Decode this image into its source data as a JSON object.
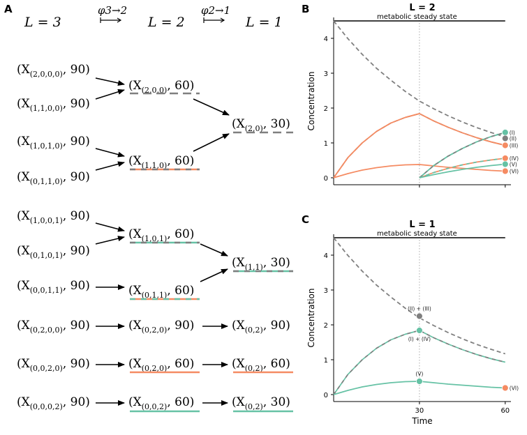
{
  "panel_labels": {
    "a": "A",
    "b": "B",
    "c": "C"
  },
  "header": {
    "l3": "L = 3",
    "map32": "φ3→2",
    "l2": "L = 2",
    "map21": "φ2→1",
    "l1": "L = 1"
  },
  "nodes": {
    "l3": [
      {
        "sub": "(2,0,0,0)",
        "val": "90"
      },
      {
        "sub": "(1,1,0,0)",
        "val": "90"
      },
      {
        "sub": "(1,0,1,0)",
        "val": "90"
      },
      {
        "sub": "(0,1,1,0)",
        "val": "90"
      },
      {
        "sub": "(1,0,0,1)",
        "val": "90"
      },
      {
        "sub": "(0,1,0,1)",
        "val": "90"
      },
      {
        "sub": "(0,0,1,1)",
        "val": "90"
      },
      {
        "sub": "(0,2,0,0)",
        "val": "90"
      },
      {
        "sub": "(0,0,2,0)",
        "val": "90"
      },
      {
        "sub": "(0,0,0,2)",
        "val": "90"
      }
    ],
    "l2": [
      {
        "sub": "(2,0,0)",
        "val": "60"
      },
      {
        "sub": "(1,1,0)",
        "val": "60"
      },
      {
        "sub": "(1,0,1)",
        "val": "60"
      },
      {
        "sub": "(0,1,1)",
        "val": "60"
      },
      {
        "sub": "(0,2,0)",
        "val": "90"
      },
      {
        "sub": "(0,2,0)",
        "val": "60"
      },
      {
        "sub": "(0,0,2)",
        "val": "60"
      }
    ],
    "l1": [
      {
        "sub": "(2,0)",
        "val": "30"
      },
      {
        "sub": "(1,1)",
        "val": "30"
      },
      {
        "sub": "(0,2)",
        "val": "90"
      },
      {
        "sub": "(0,2)",
        "val": "60"
      },
      {
        "sub": "(0,2)",
        "val": "30"
      }
    ]
  },
  "colors": {
    "gray": "#7f7f7f",
    "orange": "#f58b62",
    "teal": "#66c2a5",
    "black": "#000000"
  },
  "chart_data": [
    {
      "type": "line",
      "title": "L = 2",
      "xlabel": "",
      "ylabel": "Concentration",
      "xlim": [
        0,
        62
      ],
      "ylim": [
        -0.2,
        4.6
      ],
      "x_ticks": [],
      "y_ticks": [
        0,
        1,
        2,
        3,
        4
      ],
      "vline": 30,
      "steady_state": {
        "y": 4.5,
        "label": "metabolic steady state"
      },
      "series": [
        {
          "x": [
            0,
            5,
            10,
            15,
            20,
            25,
            30,
            35,
            40,
            45,
            50,
            55,
            60
          ],
          "values": [
            4.5,
            3.99,
            3.54,
            3.14,
            2.8,
            2.48,
            2.2,
            1.98,
            1.78,
            1.6,
            1.44,
            1.3,
            1.17
          ],
          "style": "dashed-gray"
        },
        {
          "x": [
            0,
            5,
            10,
            15,
            20,
            25,
            30,
            35,
            40,
            45,
            50,
            55,
            60
          ],
          "values": [
            0,
            0.58,
            1.0,
            1.33,
            1.57,
            1.73,
            1.84,
            1.63,
            1.45,
            1.29,
            1.15,
            1.03,
            0.93
          ],
          "style": "orange-gray"
        },
        {
          "x": [
            0,
            5,
            10,
            15,
            20,
            25,
            30,
            35,
            40,
            45,
            50,
            55,
            60
          ],
          "values": [
            0,
            0.58,
            1.0,
            1.33,
            1.57,
            1.73,
            1.84,
            1.63,
            1.45,
            1.29,
            1.15,
            1.03,
            0.93
          ],
          "style": "orange"
        },
        {
          "x": [
            0,
            5,
            10,
            15,
            20,
            25,
            30,
            35,
            40,
            45,
            50,
            55,
            60
          ],
          "values": [
            0,
            0.12,
            0.22,
            0.29,
            0.34,
            0.37,
            0.38,
            0.34,
            0.3,
            0.27,
            0.24,
            0.21,
            0.19
          ],
          "style": "orange"
        },
        {
          "x": [
            30,
            35,
            40,
            45,
            50,
            55,
            60
          ],
          "values": [
            0,
            0.35,
            0.62,
            0.84,
            1.03,
            1.18,
            1.3
          ],
          "style": "teal"
        },
        {
          "x": [
            30,
            35,
            40,
            45,
            50,
            55,
            60
          ],
          "values": [
            0,
            0.35,
            0.62,
            0.84,
            1.03,
            1.18,
            1.3
          ],
          "style": "teal-gray"
        },
        {
          "x": [
            30,
            35,
            40,
            45,
            50,
            55,
            60
          ],
          "values": [
            0,
            0.15,
            0.27,
            0.37,
            0.45,
            0.51,
            0.56
          ],
          "style": "orange-teal"
        },
        {
          "x": [
            30,
            35,
            40,
            45,
            50,
            55,
            60
          ],
          "values": [
            0,
            0.09,
            0.17,
            0.24,
            0.3,
            0.35,
            0.39
          ],
          "style": "teal"
        }
      ],
      "markers": [
        {
          "x": 60,
          "y": 1.3,
          "color": "teal",
          "label": "(I)"
        },
        {
          "x": 60,
          "y": 1.13,
          "color": "gray",
          "label": "(II)"
        },
        {
          "x": 60,
          "y": 0.93,
          "color": "orange",
          "label": "(III)"
        },
        {
          "x": 60,
          "y": 0.56,
          "color": "orange",
          "label": "(IV)"
        },
        {
          "x": 60,
          "y": 0.39,
          "color": "teal",
          "label": "(V)"
        },
        {
          "x": 60,
          "y": 0.19,
          "color": "orange",
          "label": "(VI)"
        }
      ]
    },
    {
      "type": "line",
      "title": "L = 1",
      "xlabel": "Time",
      "ylabel": "Concentration",
      "xlim": [
        0,
        62
      ],
      "ylim": [
        -0.2,
        4.6
      ],
      "x_ticks": [
        30,
        60
      ],
      "y_ticks": [
        0,
        1,
        2,
        3,
        4
      ],
      "vline": 30,
      "steady_state": {
        "y": 4.5,
        "label": "metabolic steady state"
      },
      "series": [
        {
          "x": [
            0,
            5,
            10,
            15,
            20,
            25,
            30,
            35,
            40,
            45,
            50,
            55,
            60
          ],
          "values": [
            4.5,
            3.99,
            3.54,
            3.14,
            2.8,
            2.48,
            2.2,
            1.98,
            1.78,
            1.6,
            1.44,
            1.3,
            1.17
          ],
          "style": "dashed-gray"
        },
        {
          "x": [
            0,
            5,
            10,
            15,
            20,
            25,
            30,
            35,
            40,
            45,
            50,
            55,
            60
          ],
          "values": [
            0,
            0.58,
            1.0,
            1.33,
            1.57,
            1.73,
            1.84,
            1.63,
            1.45,
            1.29,
            1.15,
            1.03,
            0.93
          ],
          "style": "teal-gray"
        },
        {
          "x": [
            0,
            5,
            10,
            15,
            20,
            25,
            30,
            35,
            40,
            45,
            50,
            55,
            60
          ],
          "values": [
            0,
            0.12,
            0.22,
            0.29,
            0.34,
            0.37,
            0.38,
            0.34,
            0.3,
            0.27,
            0.24,
            0.21,
            0.19
          ],
          "style": "teal"
        }
      ],
      "markers": [
        {
          "x": 30,
          "y": 2.25,
          "color": "gray",
          "label": "(II) + (III)",
          "pos": "above"
        },
        {
          "x": 30,
          "y": 1.84,
          "color": "teal",
          "label": "(I) + (IV)",
          "pos": "below"
        },
        {
          "x": 30,
          "y": 0.38,
          "color": "teal",
          "label": "(V)",
          "pos": "above"
        },
        {
          "x": 60,
          "y": 0.19,
          "color": "orange",
          "label": "(VI)",
          "pos": "right"
        }
      ]
    }
  ]
}
